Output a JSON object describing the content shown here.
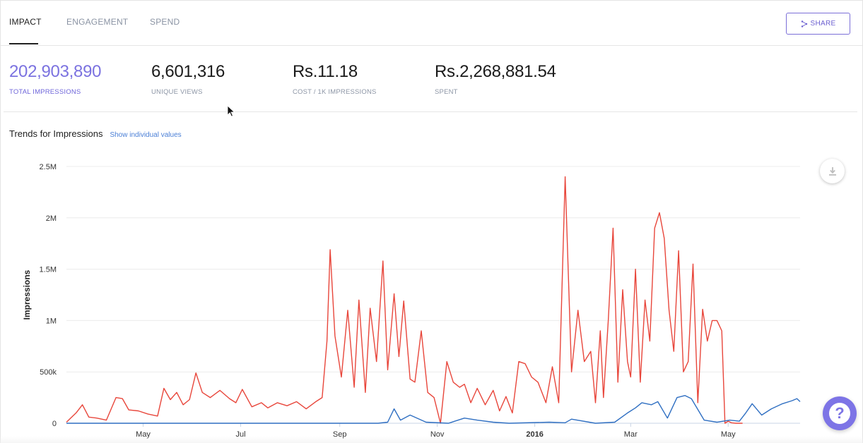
{
  "tabs": [
    {
      "label": "IMPACT",
      "active": true
    },
    {
      "label": "ENGAGEMENT",
      "active": false
    },
    {
      "label": "SPEND",
      "active": false
    }
  ],
  "share": {
    "label": "SHARE",
    "icon": "share-icon"
  },
  "stats": [
    {
      "value": "202,903,890",
      "label": "TOTAL IMPRESSIONS"
    },
    {
      "value": "6,601,316",
      "label": "UNIQUE VIEWS"
    },
    {
      "value": "Rs.11.18",
      "label": "COST / 1K IMPRESSIONS"
    },
    {
      "value": "Rs.2,268,881.54",
      "label": "SPENT"
    }
  ],
  "chart_header": {
    "title": "Trends for Impressions",
    "link": "Show individual values"
  },
  "colors": {
    "accent": "#7b72e0",
    "series_red": "#e8463b",
    "series_blue": "#2f6fc2",
    "link": "#4a7fd6"
  },
  "icons": {
    "download": "download-icon",
    "help": "help-icon"
  },
  "chart_data": {
    "type": "line",
    "title": "",
    "xlabel": "",
    "ylabel": "Impressions",
    "ylim": [
      0,
      2500000
    ],
    "yticks": [
      0,
      500000,
      1000000,
      1500000,
      2000000,
      2500000
    ],
    "ytick_labels": [
      "0",
      "500k",
      "1M",
      "1.5M",
      "2M",
      "2.5M"
    ],
    "xlim": [
      "2015-03-14",
      "2016-06-15"
    ],
    "xticks": [
      "2015-05-01",
      "2015-07-01",
      "2015-09-01",
      "2015-11-01",
      "2016-01-01",
      "2016-03-01",
      "2016-05-01"
    ],
    "xtick_labels": [
      "May",
      "Jul",
      "Sep",
      "Nov",
      "2016",
      "Mar",
      "May"
    ],
    "grid": true,
    "series": [
      {
        "color": "#e8463b",
        "x": [
          "2015-03-14",
          "2015-03-20",
          "2015-03-24",
          "2015-03-28",
          "2015-04-02",
          "2015-04-08",
          "2015-04-14",
          "2015-04-18",
          "2015-04-22",
          "2015-04-28",
          "2015-05-04",
          "2015-05-10",
          "2015-05-14",
          "2015-05-18",
          "2015-05-22",
          "2015-05-26",
          "2015-05-30",
          "2015-06-03",
          "2015-06-07",
          "2015-06-12",
          "2015-06-18",
          "2015-06-24",
          "2015-06-28",
          "2015-07-02",
          "2015-07-08",
          "2015-07-14",
          "2015-07-18",
          "2015-07-24",
          "2015-07-30",
          "2015-08-05",
          "2015-08-11",
          "2015-08-17",
          "2015-08-21",
          "2015-08-24",
          "2015-08-26",
          "2015-08-29",
          "2015-09-02",
          "2015-09-06",
          "2015-09-10",
          "2015-09-13",
          "2015-09-17",
          "2015-09-20",
          "2015-09-24",
          "2015-09-28",
          "2015-10-01",
          "2015-10-05",
          "2015-10-08",
          "2015-10-11",
          "2015-10-15",
          "2015-10-18",
          "2015-10-22",
          "2015-10-26",
          "2015-10-30",
          "2015-11-03",
          "2015-11-07",
          "2015-11-11",
          "2015-11-15",
          "2015-11-18",
          "2015-11-22",
          "2015-11-26",
          "2015-12-01",
          "2015-12-06",
          "2015-12-10",
          "2015-12-14",
          "2015-12-18",
          "2015-12-22",
          "2015-12-26",
          "2015-12-30",
          "2016-01-03",
          "2016-01-08",
          "2016-01-12",
          "2016-01-16",
          "2016-01-20",
          "2016-01-24",
          "2016-01-28",
          "2016-02-01",
          "2016-02-05",
          "2016-02-08",
          "2016-02-11",
          "2016-02-13",
          "2016-02-16",
          "2016-02-19",
          "2016-02-22",
          "2016-02-25",
          "2016-02-28",
          "2016-03-01",
          "2016-03-04",
          "2016-03-07",
          "2016-03-10",
          "2016-03-13",
          "2016-03-16",
          "2016-03-19",
          "2016-03-22",
          "2016-03-25",
          "2016-03-28",
          "2016-03-31",
          "2016-04-03",
          "2016-04-06",
          "2016-04-09",
          "2016-04-12",
          "2016-04-15",
          "2016-04-18",
          "2016-04-21",
          "2016-04-24",
          "2016-04-27",
          "2016-04-29",
          "2016-05-01",
          "2016-05-03",
          "2016-05-06",
          "2016-05-10"
        ],
        "values": [
          10000,
          100000,
          180000,
          60000,
          50000,
          30000,
          250000,
          240000,
          130000,
          120000,
          90000,
          70000,
          340000,
          230000,
          300000,
          180000,
          230000,
          490000,
          300000,
          250000,
          320000,
          240000,
          200000,
          330000,
          160000,
          200000,
          150000,
          200000,
          170000,
          210000,
          140000,
          210000,
          250000,
          800000,
          1690000,
          850000,
          450000,
          1100000,
          350000,
          1200000,
          300000,
          1120000,
          600000,
          1580000,
          520000,
          1260000,
          650000,
          1190000,
          430000,
          400000,
          900000,
          300000,
          250000,
          0,
          600000,
          400000,
          350000,
          380000,
          200000,
          340000,
          180000,
          320000,
          120000,
          260000,
          100000,
          600000,
          580000,
          450000,
          400000,
          200000,
          550000,
          200000,
          2400000,
          500000,
          1100000,
          600000,
          700000,
          200000,
          900000,
          250000,
          1000000,
          1900000,
          400000,
          1300000,
          600000,
          450000,
          1500000,
          400000,
          1200000,
          800000,
          1900000,
          2050000,
          1800000,
          1100000,
          700000,
          1680000,
          500000,
          600000,
          1550000,
          200000,
          1110000,
          800000,
          1000000,
          1000000,
          900000,
          0,
          20000,
          5000,
          0,
          0
        ]
      },
      {
        "color": "#2f6fc2",
        "x": [
          "2015-03-14",
          "2015-09-25",
          "2015-10-01",
          "2015-10-05",
          "2015-10-09",
          "2015-10-15",
          "2015-10-25",
          "2015-11-08",
          "2015-11-12",
          "2015-11-18",
          "2015-11-26",
          "2015-12-06",
          "2015-12-16",
          "2016-01-10",
          "2016-01-20",
          "2016-01-24",
          "2016-02-08",
          "2016-02-20",
          "2016-02-28",
          "2016-03-04",
          "2016-03-08",
          "2016-03-14",
          "2016-03-18",
          "2016-03-24",
          "2016-03-30",
          "2016-04-04",
          "2016-04-08",
          "2016-04-16",
          "2016-04-24",
          "2016-05-02",
          "2016-05-08",
          "2016-05-12",
          "2016-05-16",
          "2016-05-22",
          "2016-05-28",
          "2016-06-04",
          "2016-06-10",
          "2016-06-13",
          "2016-06-15"
        ],
        "values": [
          0,
          0,
          10000,
          140000,
          30000,
          80000,
          10000,
          0,
          20000,
          50000,
          30000,
          10000,
          0,
          10000,
          5000,
          40000,
          0,
          10000,
          100000,
          150000,
          200000,
          180000,
          210000,
          50000,
          250000,
          270000,
          240000,
          30000,
          10000,
          30000,
          20000,
          100000,
          190000,
          80000,
          140000,
          190000,
          220000,
          240000,
          210000
        ]
      }
    ]
  }
}
